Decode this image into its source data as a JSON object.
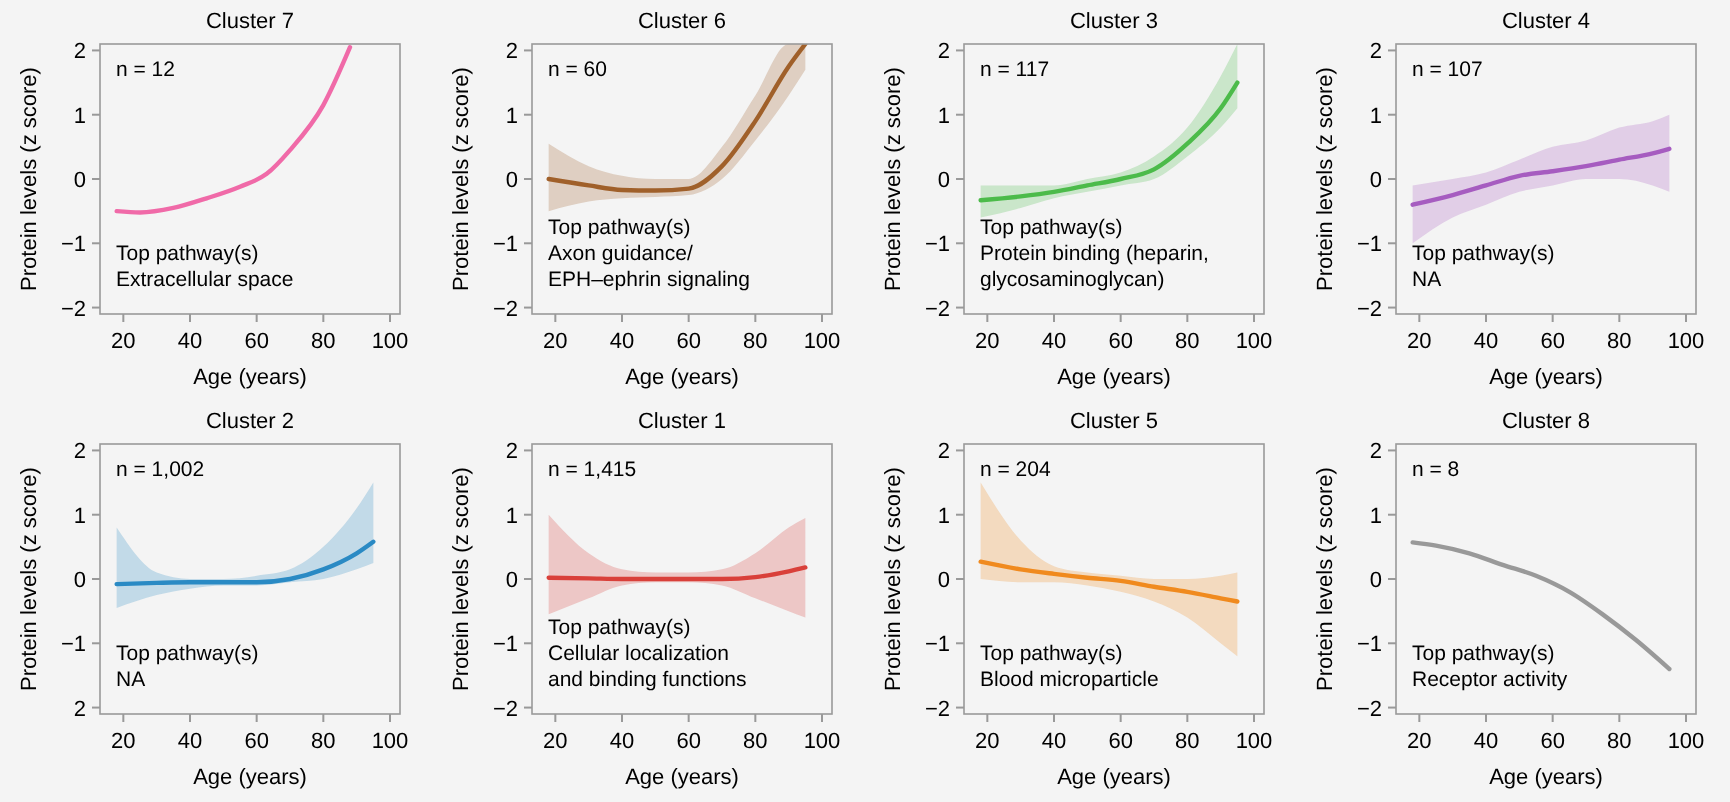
{
  "chart_data": [
    {
      "type": "line",
      "title": "Cluster 7",
      "xlabel": "Age (years)",
      "ylabel": "Protein levels (z score)",
      "xlim": [
        13,
        103
      ],
      "ylim": [
        -2.1,
        2.1
      ],
      "xticks": [
        20,
        40,
        60,
        80,
        100
      ],
      "yticks": [
        -2,
        -1,
        0,
        1,
        2
      ],
      "annotations": [
        "n = 12",
        "Top pathway(s)\nExtracellular space"
      ],
      "series": [
        {
          "color": "#f06aa8",
          "x": [
            18,
            25,
            35,
            45,
            55,
            63,
            70,
            80,
            88
          ],
          "values": [
            -0.5,
            -0.52,
            -0.45,
            -0.3,
            -0.12,
            0.08,
            0.45,
            1.15,
            2.05
          ]
        }
      ]
    },
    {
      "type": "line",
      "title": "Cluster 6",
      "xlabel": "Age (years)",
      "ylabel": "Protein levels (z score)",
      "xlim": [
        13,
        103
      ],
      "ylim": [
        -2.1,
        2.1
      ],
      "xticks": [
        20,
        40,
        60,
        80,
        100
      ],
      "yticks": [
        -2,
        -1,
        0,
        1,
        2
      ],
      "annotations": [
        "n = 60",
        "Top pathway(s)\nAxon guidance/\nEPH–ephrin signaling"
      ],
      "series": [
        {
          "color": "#a0602a",
          "x": [
            18,
            30,
            40,
            50,
            60,
            70,
            80,
            90,
            95
          ],
          "values": [
            0,
            -0.1,
            -0.17,
            -0.18,
            -0.15,
            0.2,
            0.9,
            1.75,
            2.1
          ],
          "lower": [
            -0.5,
            -0.35,
            -0.3,
            -0.28,
            -0.25,
            0,
            0.6,
            1.3,
            1.7
          ],
          "upper": [
            0.55,
            0.2,
            0.05,
            0,
            0,
            0.5,
            1.3,
            2.1,
            2.1
          ]
        }
      ]
    },
    {
      "type": "line",
      "title": "Cluster 3",
      "xlabel": "Age (years)",
      "ylabel": "Protein levels (z score)",
      "xlim": [
        13,
        103
      ],
      "ylim": [
        -2.1,
        2.1
      ],
      "xticks": [
        20,
        40,
        60,
        80,
        100
      ],
      "yticks": [
        -2,
        -1,
        0,
        1,
        2
      ],
      "annotations": [
        "n = 117",
        "Top pathway(s)\nProtein binding (heparin,\nglycosaminoglycan)"
      ],
      "series": [
        {
          "color": "#4cbb4a",
          "x": [
            18,
            30,
            40,
            50,
            60,
            70,
            80,
            90,
            95
          ],
          "values": [
            -0.33,
            -0.27,
            -0.2,
            -0.1,
            0,
            0.15,
            0.55,
            1.1,
            1.5
          ],
          "lower": [
            -0.6,
            -0.45,
            -0.3,
            -0.2,
            -0.1,
            0,
            0.35,
            0.8,
            1.1
          ],
          "upper": [
            -0.1,
            -0.1,
            -0.1,
            0,
            0.1,
            0.35,
            0.8,
            1.6,
            2.1
          ]
        }
      ]
    },
    {
      "type": "line",
      "title": "Cluster 4",
      "xlabel": "Age (years)",
      "ylabel": "Protein levels (z score)",
      "xlim": [
        13,
        103
      ],
      "ylim": [
        -2.1,
        2.1
      ],
      "xticks": [
        20,
        40,
        60,
        80,
        100
      ],
      "yticks": [
        -2,
        -1,
        0,
        1,
        2
      ],
      "annotations": [
        "n = 107",
        "Top pathway(s)\nNA"
      ],
      "series": [
        {
          "color": "#a65cc0",
          "x": [
            18,
            30,
            40,
            50,
            60,
            70,
            80,
            90,
            95
          ],
          "values": [
            -0.4,
            -0.25,
            -0.1,
            0.05,
            0.12,
            0.2,
            0.3,
            0.4,
            0.47
          ],
          "lower": [
            -1,
            -0.6,
            -0.4,
            -0.2,
            -0.1,
            0,
            0,
            -0.1,
            -0.2
          ],
          "upper": [
            -0.1,
            0,
            0.1,
            0.3,
            0.5,
            0.6,
            0.8,
            0.9,
            1
          ]
        }
      ]
    },
    {
      "type": "line",
      "title": "Cluster 2",
      "xlabel": "Age (years)",
      "ylabel": "Protein levels (z score)",
      "xlim": [
        13,
        103
      ],
      "ylim": [
        -2.1,
        2.1
      ],
      "xticks": [
        20,
        40,
        60,
        80,
        100
      ],
      "yticks": [
        {
          "value": -2,
          "label": "2"
        },
        -1,
        0,
        1,
        2
      ],
      "annotations": [
        "n = 1,002",
        "Top pathway(s)\nNA"
      ],
      "series": [
        {
          "color": "#2a8ac4",
          "x": [
            18,
            30,
            40,
            50,
            60,
            70,
            80,
            90,
            95
          ],
          "values": [
            -0.08,
            -0.06,
            -0.05,
            -0.05,
            -0.05,
            0,
            0.15,
            0.4,
            0.58
          ],
          "lower": [
            -0.45,
            -0.25,
            -0.15,
            -0.1,
            -0.1,
            -0.05,
            0,
            0.15,
            0.25
          ],
          "upper": [
            0.8,
            0.1,
            0,
            0,
            0.05,
            0.15,
            0.5,
            1.1,
            1.5
          ]
        }
      ]
    },
    {
      "type": "line",
      "title": "Cluster 1",
      "xlabel": "Age (years)",
      "ylabel": "Protein levels (z score)",
      "xlim": [
        13,
        103
      ],
      "ylim": [
        -2.1,
        2.1
      ],
      "xticks": [
        20,
        40,
        60,
        80,
        100
      ],
      "yticks": [
        -2,
        -1,
        0,
        1,
        2
      ],
      "annotations": [
        "n = 1,415",
        "Top pathway(s)\nCellular localization\nand binding functions"
      ],
      "series": [
        {
          "color": "#d9403a",
          "x": [
            18,
            30,
            40,
            50,
            60,
            70,
            80,
            90,
            95
          ],
          "values": [
            0.02,
            0.01,
            0,
            0,
            0,
            0,
            0.03,
            0.12,
            0.18
          ],
          "lower": [
            -0.55,
            -0.3,
            -0.1,
            -0.05,
            -0.05,
            -0.1,
            -0.3,
            -0.5,
            -0.6
          ],
          "upper": [
            1,
            0.4,
            0.15,
            0.1,
            0.1,
            0.15,
            0.4,
            0.8,
            0.95
          ]
        }
      ]
    },
    {
      "type": "line",
      "title": "Cluster 5",
      "xlabel": "Age (years)",
      "ylabel": "Protein levels (z score)",
      "xlim": [
        13,
        103
      ],
      "ylim": [
        -2.1,
        2.1
      ],
      "xticks": [
        20,
        40,
        60,
        80,
        100
      ],
      "yticks": [
        -2,
        -1,
        0,
        1,
        2
      ],
      "annotations": [
        "n = 204",
        "Top pathway(s)\nBlood microparticle"
      ],
      "series": [
        {
          "color": "#f08a1e",
          "x": [
            18,
            30,
            40,
            50,
            60,
            70,
            80,
            90,
            95
          ],
          "values": [
            0.27,
            0.15,
            0.08,
            0.02,
            -0.03,
            -0.12,
            -0.2,
            -0.3,
            -0.35
          ],
          "lower": [
            0,
            -0.05,
            -0.05,
            -0.1,
            -0.2,
            -0.35,
            -0.6,
            -1,
            -1.2
          ],
          "upper": [
            1.5,
            0.6,
            0.2,
            0.1,
            0.05,
            0,
            0,
            0.05,
            0.1
          ]
        }
      ]
    },
    {
      "type": "line",
      "title": "Cluster 8",
      "xlabel": "Age (years)",
      "ylabel": "Protein levels (z score)",
      "xlim": [
        13,
        103
      ],
      "ylim": [
        -2.1,
        2.1
      ],
      "xticks": [
        20,
        40,
        60,
        80,
        100
      ],
      "yticks": [
        -2,
        -1,
        0,
        1,
        2
      ],
      "annotations": [
        "n = 8",
        "Top pathway(s)\nReceptor activity"
      ],
      "series": [
        {
          "color": "#999999",
          "x": [
            18,
            25,
            35,
            45,
            55,
            65,
            75,
            85,
            95
          ],
          "values": [
            0.57,
            0.52,
            0.4,
            0.22,
            0.05,
            -0.2,
            -0.55,
            -0.95,
            -1.4
          ]
        }
      ]
    }
  ]
}
